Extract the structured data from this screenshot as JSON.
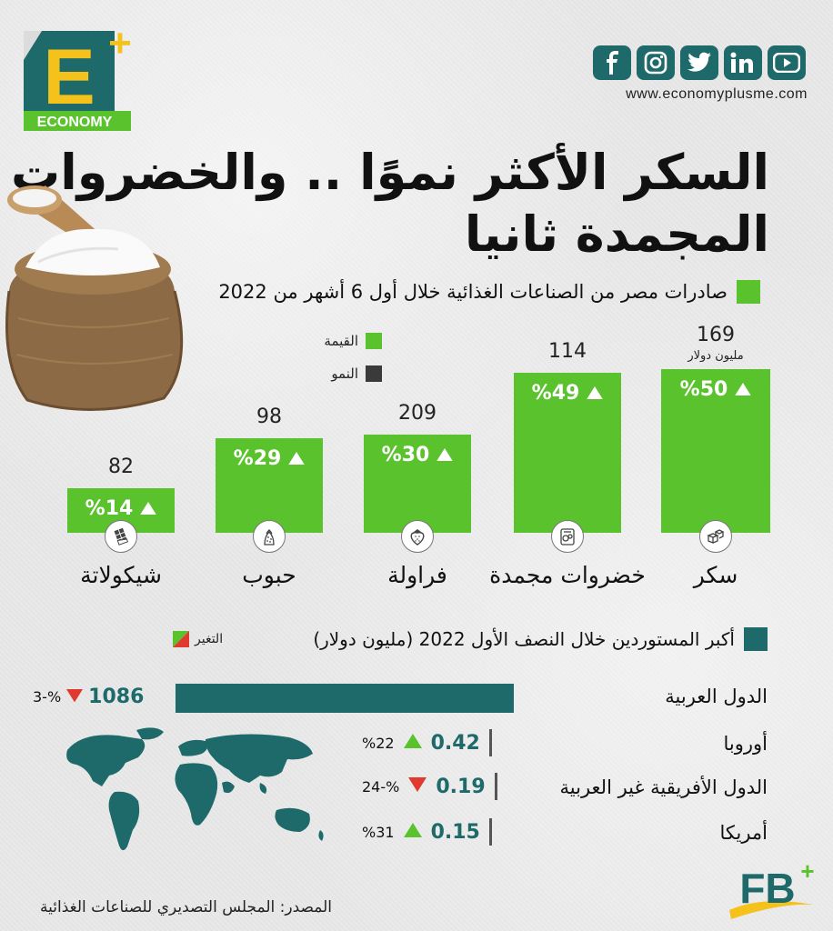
{
  "brand": {
    "logo_letter": "E",
    "logo_plus": "+",
    "logo_text": "ECONOMY",
    "website": "www.economyplusme.com",
    "bottom_logo": "FB",
    "bottom_logo_plus": "+",
    "colors": {
      "accent_green": "#5ac22d",
      "teal": "#1e6a6a",
      "yellow": "#f5c21b",
      "red": "#e03a2f"
    }
  },
  "social": [
    "facebook-icon",
    "instagram-icon",
    "twitter-icon",
    "linkedin-icon",
    "youtube-icon"
  ],
  "title": {
    "line1": "السكر الأكثر نموًا .. والخضروات",
    "line2": "المجمدة ثانيا"
  },
  "chart_data": [
    {
      "type": "bar",
      "title": "صادرات مصر من الصناعات الغذائية خلال أول 6 أشهر من 2022",
      "legend": [
        {
          "label": "القيمة",
          "color": "#5ac22d"
        },
        {
          "label": "النمو",
          "color": "#3a3a3a"
        }
      ],
      "unit_label": "مليون دولار",
      "categories": [
        "سكر",
        "خضروات مجمدة",
        "فراولة",
        "حبوب",
        "شيكولاتة"
      ],
      "icons": [
        "sugar-cubes-icon",
        "frozen-vegetables-icon",
        "strawberry-icon",
        "grains-icon",
        "chocolate-icon"
      ],
      "values": [
        169,
        114,
        209,
        98,
        82
      ],
      "growth": [
        "%50",
        "%49",
        "%30",
        "%29",
        "%14"
      ],
      "growth_direction": [
        "up",
        "up",
        "up",
        "up",
        "up"
      ]
    },
    {
      "type": "bar",
      "title": "أكبر المستوردين خلال النصف الأول 2022 (مليون دولار)",
      "change_label": "التغير",
      "categories": [
        "الدول العربية",
        "أوروبا",
        "الدول الأفريقية غير العربية",
        "أمريكا"
      ],
      "values": [
        1086,
        0.42,
        0.19,
        0.15
      ],
      "change": [
        "3-%",
        "%22",
        "24-%",
        "%31"
      ],
      "change_direction": [
        "down",
        "up",
        "down",
        "up"
      ]
    }
  ],
  "source": "المصدر: المجلس التصديري للصناعات الغذائية"
}
